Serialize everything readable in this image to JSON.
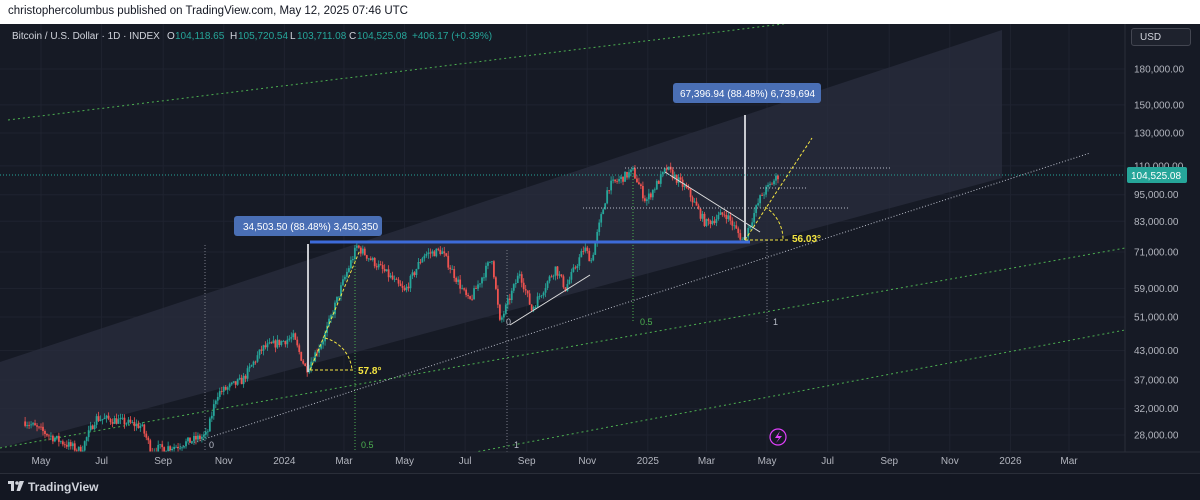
{
  "header": {
    "text": "christophercolumbus published on TradingView.com, May 12, 2025 07:46 UTC"
  },
  "legend": {
    "symbol": "Bitcoin / U.S. Dollar · 1D · INDEX",
    "o_label": "O",
    "o_value": "104,118.65",
    "h_label": "H",
    "h_value": "105,720.54",
    "l_label": "L",
    "l_value": "103,711.08",
    "c_label": "C",
    "c_value": "104,525.08",
    "change": "+406.17 (+0.39%)"
  },
  "currency_button": "USD",
  "footer": {
    "brand": "TradingView"
  },
  "colors": {
    "background": "#161a25",
    "up": "#26a69a",
    "down": "#ef5350",
    "channel": "#2a2e3d",
    "annotation_blue": "#4a6fb5",
    "fib_yellow": "#f5e642",
    "green_line": "#4caf50"
  },
  "chart_data": {
    "type": "candlestick",
    "title": "Bitcoin / U.S. Dollar",
    "scale": "log",
    "ylim": [
      26000,
      250000
    ],
    "current_price": "104,525.08",
    "y_ticks": [
      "180,000.00",
      "150,000.00",
      "130,000.00",
      "110,000.00",
      "95,000.00",
      "83,000.00",
      "71,000.00",
      "59,000.00",
      "51,000.00",
      "43,000.00",
      "37,000.00",
      "32,000.00",
      "28,000.00"
    ],
    "y_tick_values": [
      180000,
      150000,
      130000,
      110000,
      95000,
      83000,
      71000,
      59000,
      51000,
      43000,
      37000,
      32000,
      28000
    ],
    "x_ticks": [
      "May",
      "Jul",
      "Sep",
      "Nov",
      "2024",
      "Mar",
      "May",
      "Jul",
      "Sep",
      "Nov",
      "2025",
      "Mar",
      "May",
      "Jul",
      "Sep",
      "Nov",
      "2026",
      "Mar"
    ],
    "x_tick_dates": [
      "2023-05-01",
      "2023-07-01",
      "2023-09-01",
      "2023-11-01",
      "2024-01-01",
      "2024-03-01",
      "2024-05-01",
      "2024-07-01",
      "2024-09-01",
      "2024-11-01",
      "2025-01-01",
      "2025-03-01",
      "2025-05-01",
      "2025-07-01",
      "2025-09-01",
      "2025-11-01",
      "2026-01-01",
      "2026-03-01"
    ],
    "price_path": [
      [
        "2023-04-15",
        30000
      ],
      [
        "2023-05-15",
        27500
      ],
      [
        "2023-06-10",
        25800
      ],
      [
        "2023-06-25",
        30500
      ],
      [
        "2023-07-15",
        30200
      ],
      [
        "2023-08-10",
        29300
      ],
      [
        "2023-08-20",
        26000
      ],
      [
        "2023-09-15",
        26500
      ],
      [
        "2023-10-15",
        28000
      ],
      [
        "2023-10-25",
        34500
      ],
      [
        "2023-11-20",
        37000
      ],
      [
        "2023-12-10",
        43500
      ],
      [
        "2024-01-10",
        46000
      ],
      [
        "2024-01-23",
        39000
      ],
      [
        "2024-02-10",
        46000
      ],
      [
        "2024-02-28",
        60000
      ],
      [
        "2024-03-14",
        73000
      ],
      [
        "2024-04-15",
        63000
      ],
      [
        "2024-05-01",
        58000
      ],
      [
        "2024-05-20",
        70000
      ],
      [
        "2024-06-07",
        71500
      ],
      [
        "2024-07-05",
        55000
      ],
      [
        "2024-07-28",
        69000
      ],
      [
        "2024-08-05",
        49500
      ],
      [
        "2024-08-25",
        64000
      ],
      [
        "2024-09-06",
        53000
      ],
      [
        "2024-09-30",
        65500
      ],
      [
        "2024-10-10",
        59000
      ],
      [
        "2024-10-29",
        72500
      ],
      [
        "2024-11-05",
        68000
      ],
      [
        "2024-11-22",
        99000
      ],
      [
        "2024-12-17",
        107000
      ],
      [
        "2024-12-30",
        92000
      ],
      [
        "2025-01-20",
        108500
      ],
      [
        "2025-02-10",
        97000
      ],
      [
        "2025-02-28",
        82000
      ],
      [
        "2025-03-20",
        86500
      ],
      [
        "2025-04-07",
        75000
      ],
      [
        "2025-04-25",
        94500
      ],
      [
        "2025-05-12",
        104525
      ]
    ],
    "annotations": {
      "range_1": "34,503.50 (88.48%) 3,450,350",
      "range_2": "67,396.94 (88.48%) 6,739,694",
      "angle_1": "57.8°",
      "angle_2": "56.03°",
      "fib_0_5_a": "0.5",
      "fib_1_a": "1",
      "fib_0_a": "0",
      "fib_0_5_b": "0.5",
      "fib_1_b": "1",
      "fib_0_b": "0"
    }
  }
}
